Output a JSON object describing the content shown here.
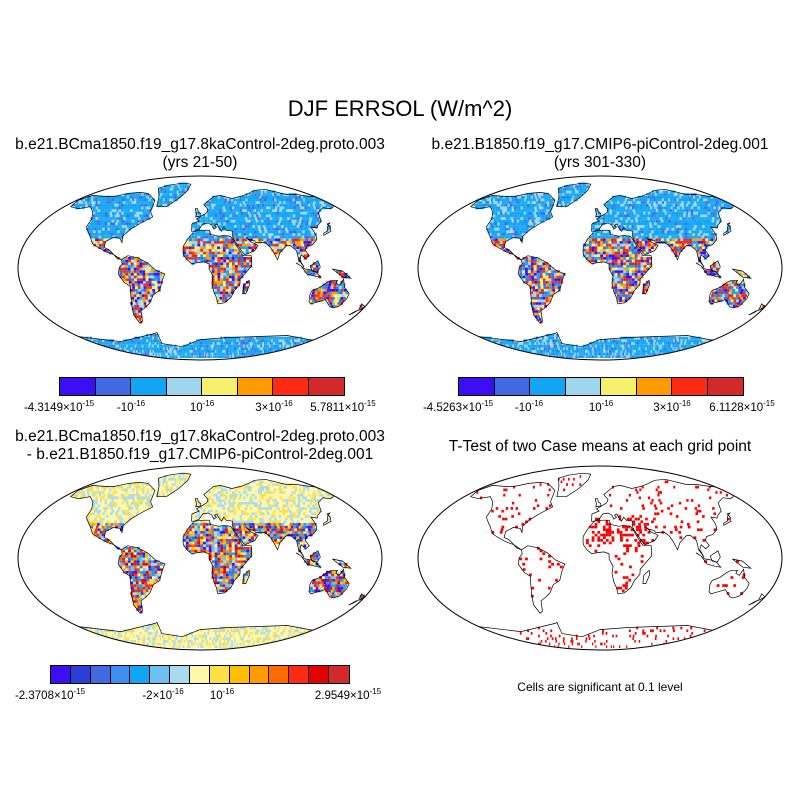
{
  "title": "DJF ERRSOL (W/m^2)",
  "panels": {
    "p1": {
      "title_line1": "b.e21.BCma1850.f19_g17.8kaControl-2deg.proto.003",
      "title_line2": "(yrs 21-50)",
      "colors": [
        "#3b0ff2",
        "#4169e1",
        "#12a5f4",
        "#9fd6ee",
        "#f6f06c",
        "#ff9a00",
        "#ff2a12",
        "#d22a2a"
      ],
      "labels": [
        {
          "mant": "-4.3149",
          "exp": "-15"
        },
        {
          "mant": "-",
          "exp": "-16"
        },
        {
          "mant": "",
          "exp": "-16"
        },
        {
          "mant": "3",
          "exp": "-16"
        },
        {
          "mant": "5.7811",
          "exp": "-15"
        }
      ]
    },
    "p2": {
      "title_line1": "b.e21.B1850.f19_g17.CMIP6-piControl-2deg.001",
      "title_line2": "(yrs 301-330)",
      "colors": [
        "#3b0ff2",
        "#4169e1",
        "#12a5f4",
        "#9fd6ee",
        "#f6f06c",
        "#ff9a00",
        "#ff2a12",
        "#d22a2a"
      ],
      "labels": [
        {
          "mant": "-4.5263",
          "exp": "-15"
        },
        {
          "mant": "-",
          "exp": "-16"
        },
        {
          "mant": "",
          "exp": "-16"
        },
        {
          "mant": "3",
          "exp": "-16"
        },
        {
          "mant": "6.1128",
          "exp": "-15"
        }
      ]
    },
    "p3": {
      "title_line1": "b.e21.BCma1850.f19_g17.8kaControl-2deg.proto.003",
      "title_line2": "- b.e21.B1850.f19_g17.CMIP6-piControl-2deg.001",
      "colors": [
        "#3b0ff2",
        "#2a3ed8",
        "#4169e1",
        "#3d8ff0",
        "#12a5f4",
        "#6cc1f0",
        "#a8daf0",
        "#fff7a8",
        "#fde046",
        "#ffbf00",
        "#ff9a00",
        "#ff6a00",
        "#ff2a12",
        "#e30000",
        "#d22a2a"
      ],
      "labels": [
        {
          "mant": "-2.3708",
          "exp": "-15"
        },
        {
          "mant": "-2",
          "exp": "-16"
        },
        {
          "mant": "",
          "exp": "-16"
        },
        {
          "mant": "2.9549",
          "exp": "-15"
        }
      ]
    },
    "p4": {
      "title": "T-Test of two Case means at each grid point",
      "note": "Cells are significant at 0.1 level",
      "sig_color": "#ff0000"
    }
  }
}
